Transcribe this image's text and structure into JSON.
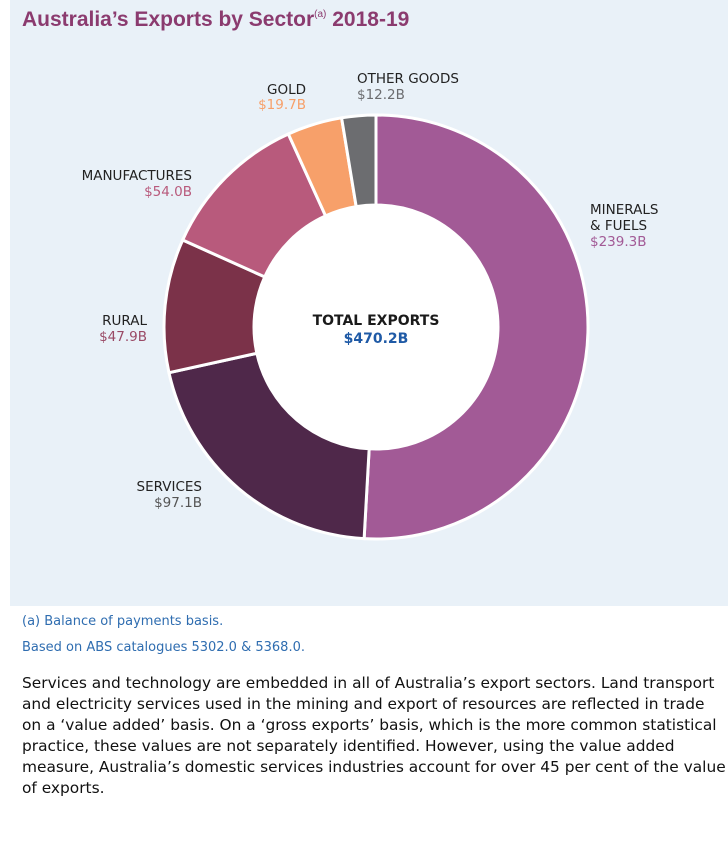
{
  "chart_data": {
    "type": "pie",
    "title": "Australia’s Exports by Sector",
    "title_superscript": "(a)",
    "title_year": "2018-19",
    "center_label": "TOTAL EXPORTS",
    "center_value": "$470.2B",
    "categories": [
      "MINERALS & FUELS",
      "SERVICES",
      "RURAL",
      "MANUFACTURES",
      "GOLD",
      "OTHER GOODS"
    ],
    "values": [
      239.3,
      97.1,
      47.9,
      54.0,
      19.7,
      12.2
    ],
    "value_labels": [
      "$239.3B",
      "$97.1B",
      "$47.9B",
      "$54.0B",
      "$19.7B",
      "$12.2B"
    ],
    "display_labels": [
      "MINERALS\n& FUELS",
      "SERVICES",
      "RURAL",
      "MANUFACTURES",
      "GOLD",
      "OTHER GOODS"
    ],
    "colors": [
      "#a25a96",
      "#4f284a",
      "#7b3249",
      "#b85a7c",
      "#f7a06a",
      "#6c6d70"
    ],
    "value_colors": [
      "#a25a96",
      "#555555",
      "#9a4a66",
      "#b85a7c",
      "#f7a06a",
      "#6c6d70"
    ]
  },
  "notes": {
    "footnote": "(a) Balance of payments basis.",
    "source": "Based on ABS catalogues 5302.0 & 5368.0."
  },
  "body_text": "Services and technology are embedded in all of Australia’s export sectors. Land transport and electricity services used in the mining and export of resources are reflected in trade on a ‘value added’ basis. On a ‘gross exports’ basis, which is the more common statistical practice, these values are not separately identified. However, using the value added measure, Australia’s domestic services industries account for over 45 per cent of the value of exports."
}
